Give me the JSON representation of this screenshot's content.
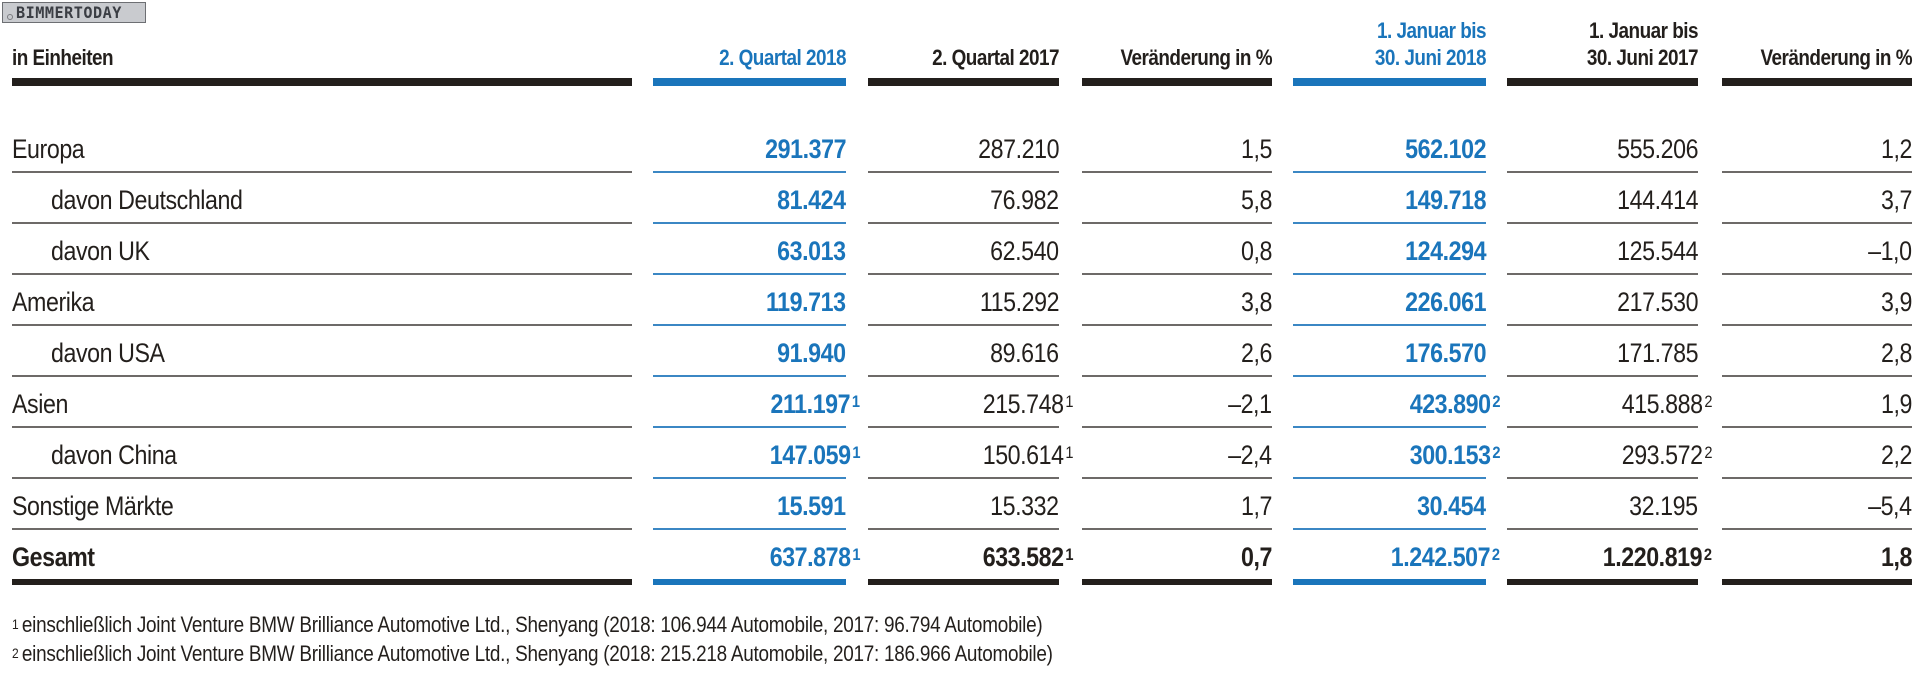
{
  "logo": {
    "text": "BIMMERTODAY"
  },
  "colors": {
    "accent_blue": "#1a75bb",
    "text_dark": "#231f1c",
    "rule_gray": "#6d6a68"
  },
  "table": {
    "unit_label": "in Einheiten",
    "columns": [
      {
        "line1": "",
        "line2": "2. Quartal 2018",
        "highlight": true
      },
      {
        "line1": "",
        "line2": "2. Quartal 2017",
        "highlight": false
      },
      {
        "line1": "",
        "line2": "Veränderung in %",
        "highlight": false
      },
      {
        "line1": "1. Januar bis",
        "line2": "30. Juni 2018",
        "highlight": true
      },
      {
        "line1": "1. Januar bis",
        "line2": "30. Juni 2017",
        "highlight": false
      },
      {
        "line1": "",
        "line2": "Veränderung in %",
        "highlight": false
      }
    ],
    "rows": [
      {
        "label": "Europa",
        "indent": false,
        "total": false,
        "values": [
          {
            "v": "291.377",
            "fn": ""
          },
          {
            "v": "287.210",
            "fn": ""
          },
          {
            "v": "1,5",
            "fn": ""
          },
          {
            "v": "562.102",
            "fn": ""
          },
          {
            "v": "555.206",
            "fn": ""
          },
          {
            "v": "1,2",
            "fn": ""
          }
        ]
      },
      {
        "label": "davon Deutschland",
        "indent": true,
        "total": false,
        "values": [
          {
            "v": "81.424",
            "fn": ""
          },
          {
            "v": "76.982",
            "fn": ""
          },
          {
            "v": "5,8",
            "fn": ""
          },
          {
            "v": "149.718",
            "fn": ""
          },
          {
            "v": "144.414",
            "fn": ""
          },
          {
            "v": "3,7",
            "fn": ""
          }
        ]
      },
      {
        "label": "davon UK",
        "indent": true,
        "total": false,
        "values": [
          {
            "v": "63.013",
            "fn": ""
          },
          {
            "v": "62.540",
            "fn": ""
          },
          {
            "v": "0,8",
            "fn": ""
          },
          {
            "v": "124.294",
            "fn": ""
          },
          {
            "v": "125.544",
            "fn": ""
          },
          {
            "v": "–1,0",
            "fn": ""
          }
        ]
      },
      {
        "label": "Amerika",
        "indent": false,
        "total": false,
        "values": [
          {
            "v": "119.713",
            "fn": ""
          },
          {
            "v": "115.292",
            "fn": ""
          },
          {
            "v": "3,8",
            "fn": ""
          },
          {
            "v": "226.061",
            "fn": ""
          },
          {
            "v": "217.530",
            "fn": ""
          },
          {
            "v": "3,9",
            "fn": ""
          }
        ]
      },
      {
        "label": "davon USA",
        "indent": true,
        "total": false,
        "values": [
          {
            "v": "91.940",
            "fn": ""
          },
          {
            "v": "89.616",
            "fn": ""
          },
          {
            "v": "2,6",
            "fn": ""
          },
          {
            "v": "176.570",
            "fn": ""
          },
          {
            "v": "171.785",
            "fn": ""
          },
          {
            "v": "2,8",
            "fn": ""
          }
        ]
      },
      {
        "label": "Asien",
        "indent": false,
        "total": false,
        "values": [
          {
            "v": "211.197",
            "fn": "1"
          },
          {
            "v": "215.748",
            "fn": "1"
          },
          {
            "v": "–2,1",
            "fn": ""
          },
          {
            "v": "423.890",
            "fn": "2"
          },
          {
            "v": "415.888",
            "fn": "2"
          },
          {
            "v": "1,9",
            "fn": ""
          }
        ]
      },
      {
        "label": "davon China",
        "indent": true,
        "total": false,
        "values": [
          {
            "v": "147.059",
            "fn": "1"
          },
          {
            "v": "150.614",
            "fn": "1"
          },
          {
            "v": "–2,4",
            "fn": ""
          },
          {
            "v": "300.153",
            "fn": "2"
          },
          {
            "v": "293.572",
            "fn": "2"
          },
          {
            "v": "2,2",
            "fn": ""
          }
        ]
      },
      {
        "label": "Sonstige Märkte",
        "indent": false,
        "total": false,
        "values": [
          {
            "v": "15.591",
            "fn": ""
          },
          {
            "v": "15.332",
            "fn": ""
          },
          {
            "v": "1,7",
            "fn": ""
          },
          {
            "v": "30.454",
            "fn": ""
          },
          {
            "v": "32.195",
            "fn": ""
          },
          {
            "v": "–5,4",
            "fn": ""
          }
        ]
      },
      {
        "label": "Gesamt",
        "indent": false,
        "total": true,
        "values": [
          {
            "v": "637.878",
            "fn": "1"
          },
          {
            "v": "633.582",
            "fn": "1"
          },
          {
            "v": "0,7",
            "fn": ""
          },
          {
            "v": "1.242.507",
            "fn": "2"
          },
          {
            "v": "1.220.819",
            "fn": "2"
          },
          {
            "v": "1,8",
            "fn": ""
          }
        ]
      }
    ]
  },
  "footnotes": [
    {
      "mark": "1",
      "text": "einschließlich Joint Venture BMW Brilliance Automotive Ltd., Shenyang (2018: 106.944 Automobile, 2017: 96.794 Automobile)"
    },
    {
      "mark": "2",
      "text": "einschließlich Joint Venture BMW Brilliance Automotive Ltd., Shenyang (2018: 215.218 Automobile, 2017: 186.966 Automobile)"
    }
  ]
}
